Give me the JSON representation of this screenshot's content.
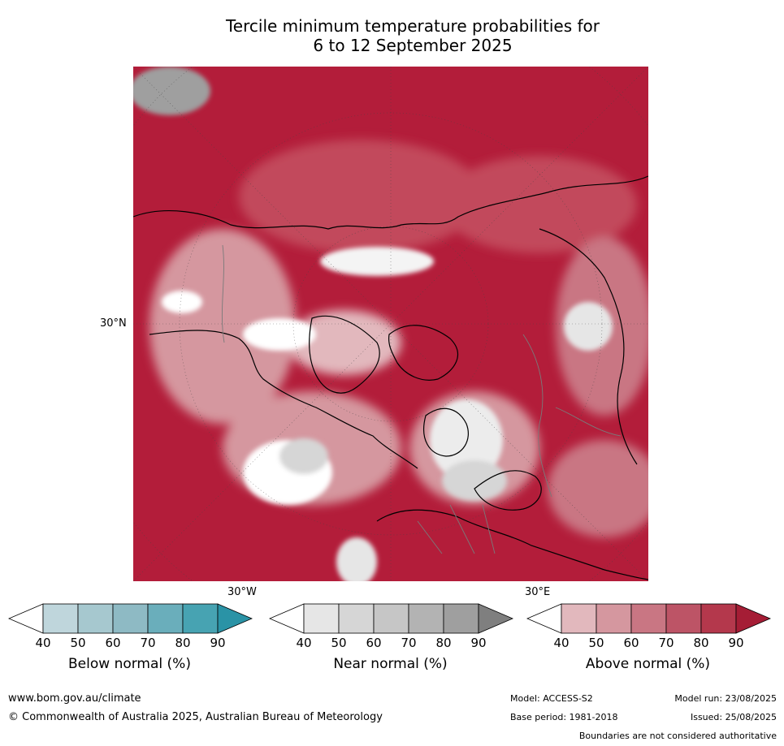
{
  "title_line1": "Tercile minimum temperature probabilities for",
  "title_line2": "6 to 12 September 2025",
  "map": {
    "lat_label": "30°N",
    "lon_left_label": "30°W",
    "lon_right_label": "30°E"
  },
  "colorbars": [
    {
      "id": "below",
      "title": "Below normal (%)",
      "ticks": [
        "40",
        "50",
        "60",
        "70",
        "80",
        "90"
      ],
      "colors": [
        "#ffffff",
        "#bfd6dc",
        "#a6c8cf",
        "#8ebac4",
        "#6aaebb",
        "#47a3b2",
        "#2a93a6"
      ]
    },
    {
      "id": "near",
      "title": "Near normal (%)",
      "ticks": [
        "40",
        "50",
        "60",
        "70",
        "80",
        "90"
      ],
      "colors": [
        "#ffffff",
        "#e6e6e6",
        "#d6d6d6",
        "#c6c6c6",
        "#b3b3b3",
        "#9f9f9f",
        "#7f7f7f"
      ]
    },
    {
      "id": "above",
      "title": "Above normal (%)",
      "ticks": [
        "40",
        "50",
        "60",
        "70",
        "80",
        "90"
      ],
      "colors": [
        "#ffffff",
        "#e2b8bd",
        "#d5979f",
        "#c97683",
        "#bd5466",
        "#b4384c",
        "#a51d35"
      ]
    }
  ],
  "footer": {
    "website": "www.bom.gov.au/climate",
    "copyright": "© Commonwealth of Australia 2025, Australian Bureau of Meteorology",
    "model": "Model: ACCESS-S2",
    "base_period": "Base period: 1981-2018",
    "model_run": "Model run: 23/08/2025",
    "issued": "Issued: 25/08/2025",
    "disclaimer": "Boundaries are not considered authoritative"
  }
}
